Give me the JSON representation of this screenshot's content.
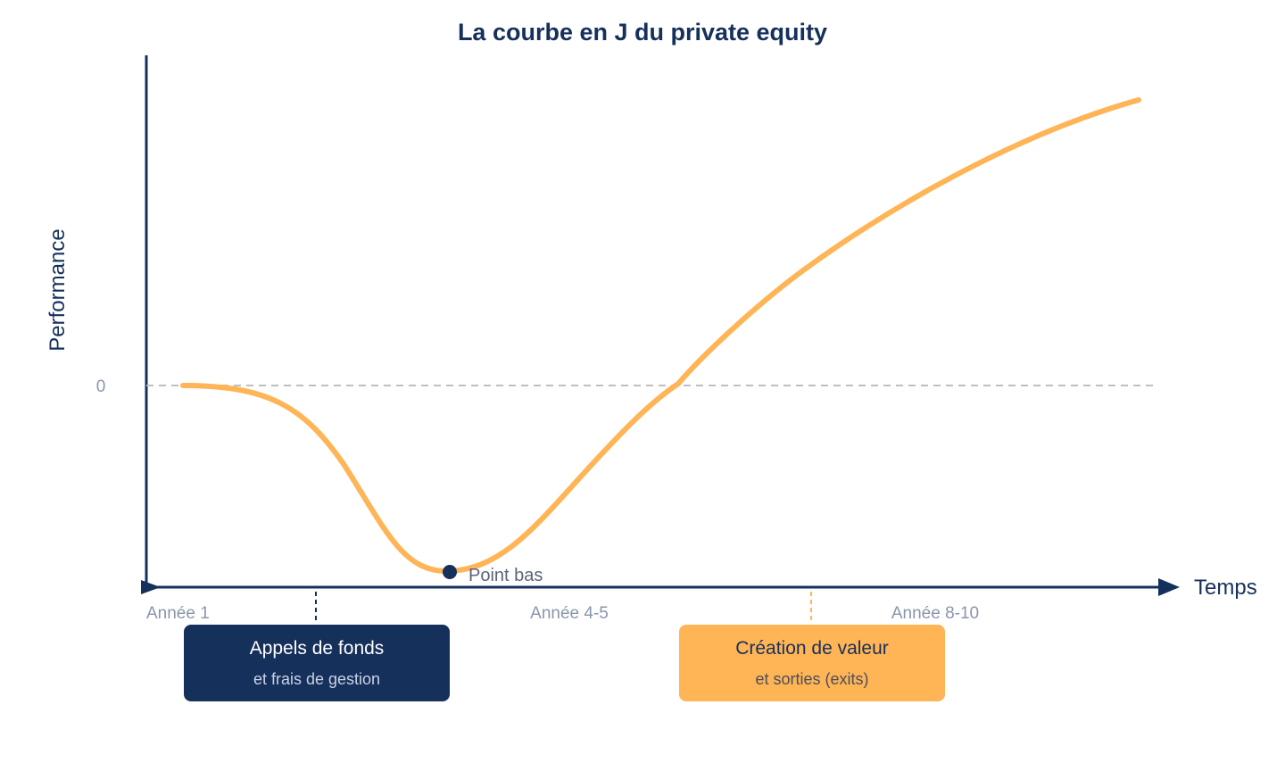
{
  "title": "La courbe en J du private equity",
  "y_axis_label": "Performance",
  "x_axis_label": "Temps",
  "zero_label": "0",
  "x_ticks": [
    "Année 1",
    "Année 4-5",
    "Année 8-10"
  ],
  "low_point_label": "Point bas",
  "phases": [
    {
      "title": "Appels de fonds",
      "subtitle": "et frais de gestion"
    },
    {
      "title": "Création de valeur",
      "subtitle": "et sorties (exits)"
    }
  ],
  "colors": {
    "navy": "#16305c",
    "curve": "#ffb455",
    "zero_line": "#bfbfbf",
    "tick_text": "#8a96aa",
    "point_text": "#5a6478"
  }
}
